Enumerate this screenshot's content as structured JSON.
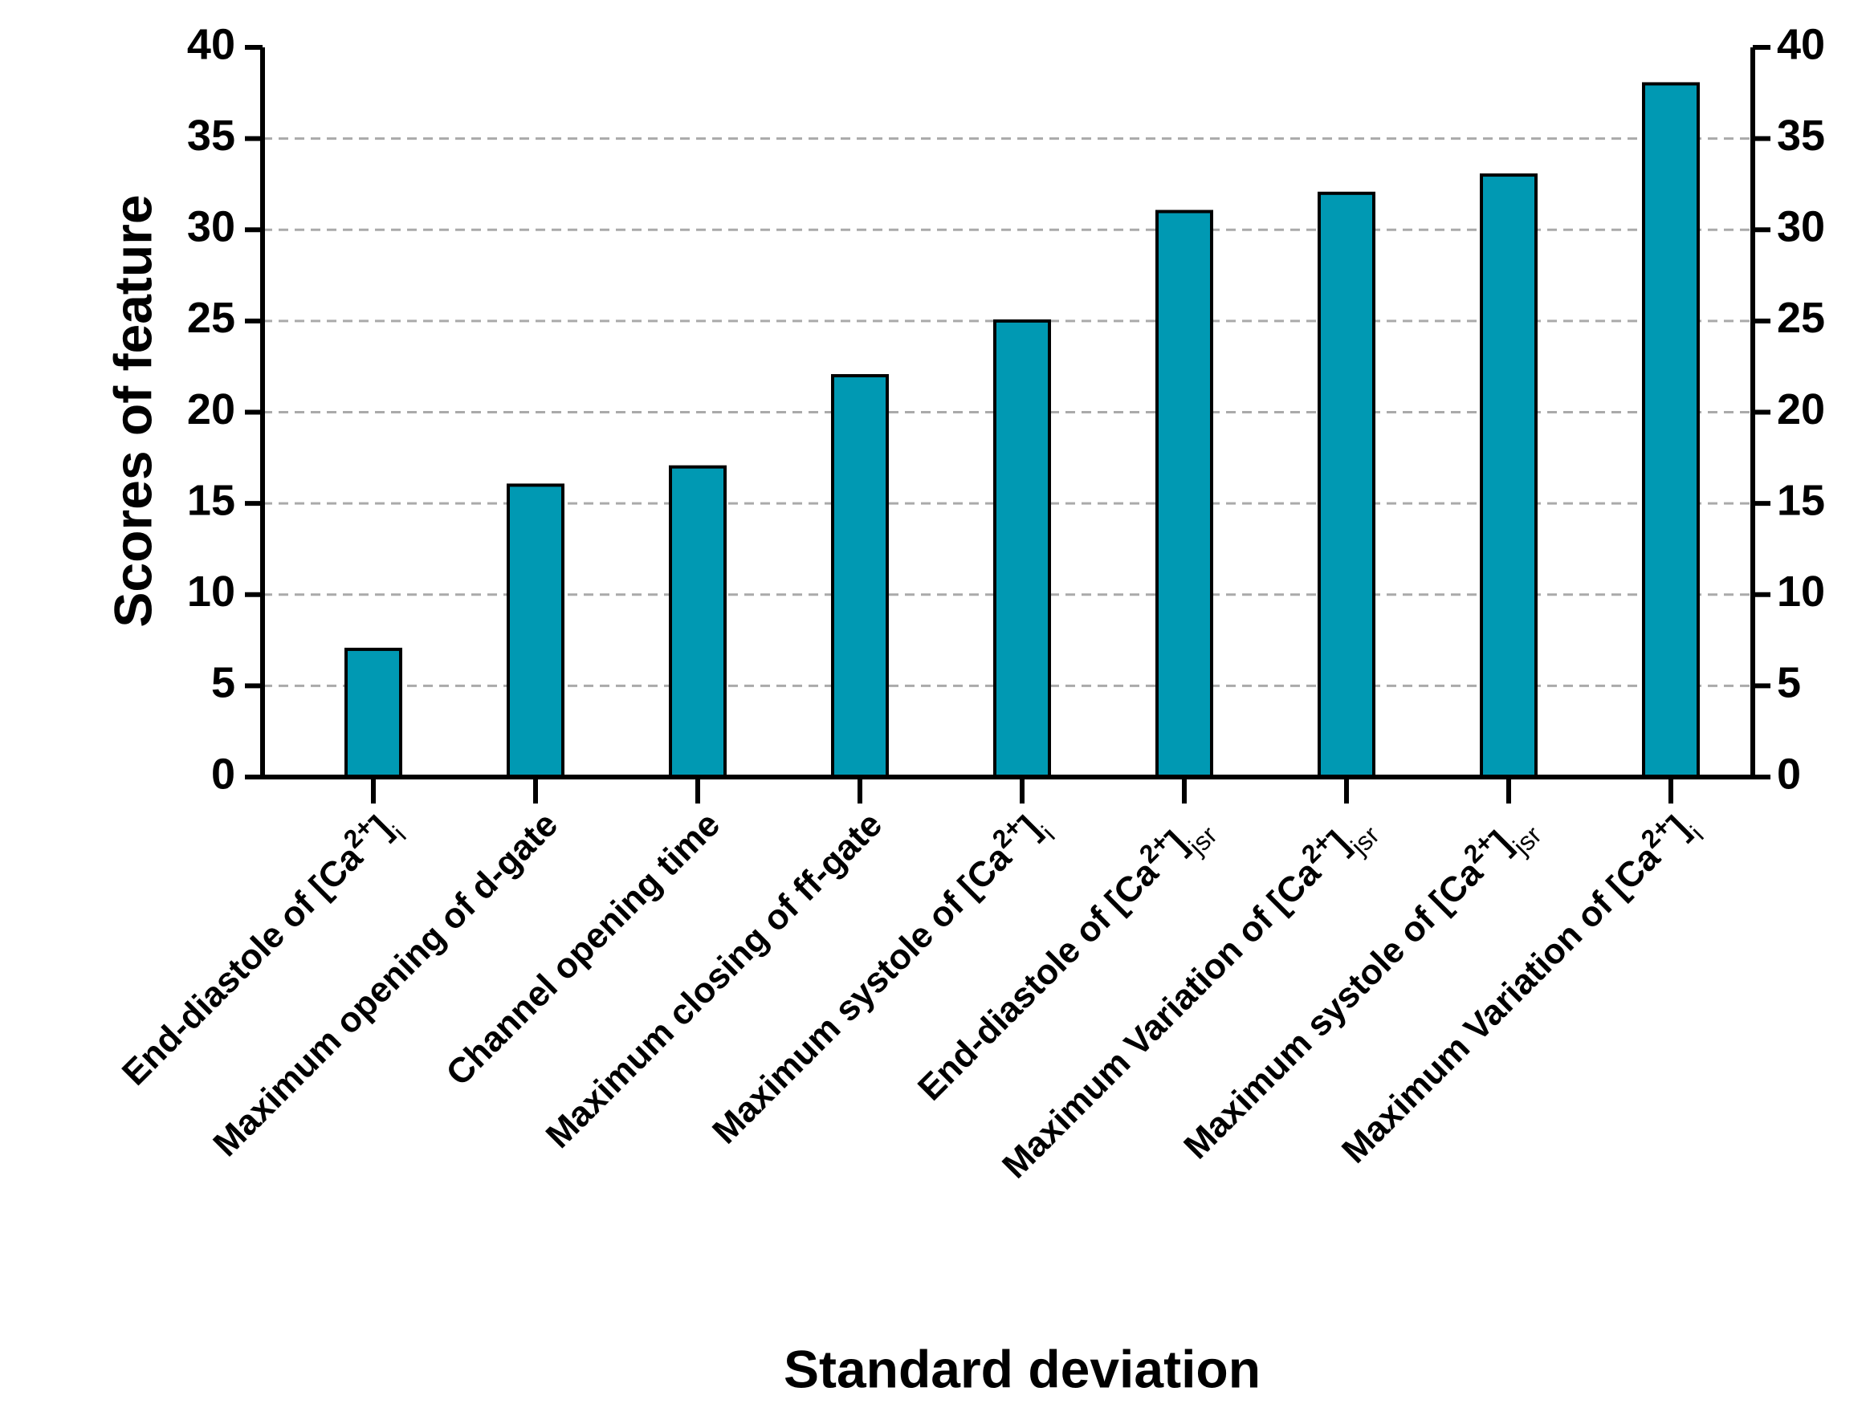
{
  "chart_data": {
    "type": "bar",
    "x_label": "Standard deviation",
    "y_label": "Scores of feature",
    "categories": [
      [
        {
          "text": "End-diastole of [Ca"
        },
        {
          "text": "2+",
          "shift": "super"
        },
        {
          "text": "]"
        },
        {
          "text": "i",
          "shift": "sub"
        }
      ],
      [
        {
          "text": "Maximum opening of d-gate"
        }
      ],
      [
        {
          "text": "Channel opening time"
        }
      ],
      [
        {
          "text": "Maximum closing of ff-gate"
        }
      ],
      [
        {
          "text": "Maximum systole of [Ca"
        },
        {
          "text": "2+",
          "shift": "super"
        },
        {
          "text": "]"
        },
        {
          "text": "i",
          "shift": "sub"
        }
      ],
      [
        {
          "text": "End-diastole of [Ca"
        },
        {
          "text": "2+",
          "shift": "super"
        },
        {
          "text": "]"
        },
        {
          "text": "jsr",
          "shift": "sub"
        }
      ],
      [
        {
          "text": "Maximum Variation of [Ca"
        },
        {
          "text": "2+",
          "shift": "super"
        },
        {
          "text": "]"
        },
        {
          "text": "jsr",
          "shift": "sub"
        }
      ],
      [
        {
          "text": "Maximum systole of [Ca"
        },
        {
          "text": "2+",
          "shift": "super"
        },
        {
          "text": "]"
        },
        {
          "text": "jsr",
          "shift": "sub"
        }
      ],
      [
        {
          "text": "Maximum Variation of [Ca"
        },
        {
          "text": "2+",
          "shift": "super"
        },
        {
          "text": "]"
        },
        {
          "text": "i",
          "shift": "sub"
        }
      ]
    ],
    "values": [
      7,
      16,
      17,
      22,
      25,
      31,
      32,
      33,
      38
    ],
    "color": "#0099b3",
    "ylim": [
      0,
      40
    ],
    "yticks": [
      0,
      5,
      10,
      15,
      20,
      25,
      30,
      35,
      40
    ],
    "y2lim": [
      0,
      40
    ],
    "y2ticks": [
      0,
      5,
      10,
      15,
      20,
      25,
      30,
      35,
      40
    ],
    "grid": true
  }
}
